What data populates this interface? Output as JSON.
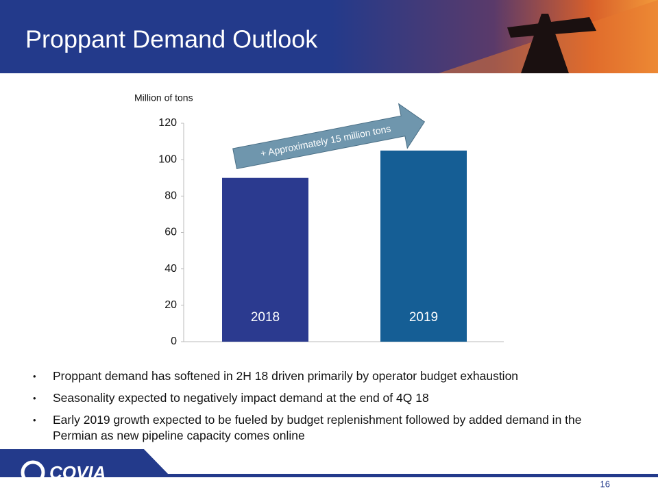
{
  "header": {
    "title": "Proppant Demand Outlook"
  },
  "chart_data": {
    "type": "bar",
    "ylabel": "Million of tons",
    "categories": [
      "2018",
      "2019"
    ],
    "values": [
      90,
      105
    ],
    "colors": [
      "#2b3a8f",
      "#155e95"
    ],
    "ylim": [
      0,
      120
    ],
    "yticks": [
      0,
      20,
      40,
      60,
      80,
      100,
      120
    ],
    "annotation": "+ Approximately 15 million tons"
  },
  "bullets": [
    "Proppant demand has softened in 2H 18 driven primarily by operator budget exhaustion",
    "Seasonality expected to negatively impact demand at the end of 4Q 18",
    "Early 2019 growth expected to be fueled by budget replenishment followed by added demand in the Permian as new pipeline capacity comes online"
  ],
  "footer": {
    "logo": "COVIA",
    "page": "16"
  }
}
